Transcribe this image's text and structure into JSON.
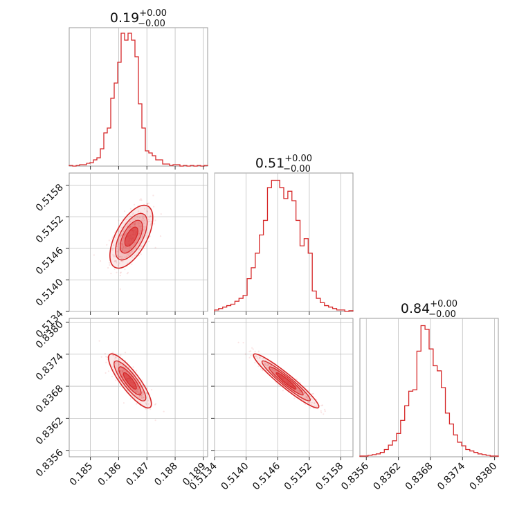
{
  "chart_data": {
    "type": "corner",
    "color": "#d62728",
    "grid": true,
    "parameters": [
      {
        "title": "0.19",
        "sup": "+0.00",
        "sub": "−0.00",
        "ticks": [
          0.185,
          0.186,
          0.187,
          0.188,
          0.189
        ],
        "tick_labels": [
          "0.185",
          "0.186",
          "0.187",
          "0.188",
          "0.189"
        ],
        "range": [
          0.18425,
          0.18915
        ],
        "hist": [
          1,
          0,
          1,
          2,
          2,
          4,
          5,
          9,
          12,
          25,
          48,
          55,
          98,
          120,
          150,
          192,
          182,
          192,
          182,
          158,
          90,
          55,
          22,
          19,
          15,
          9,
          9,
          3,
          3,
          1,
          2,
          2,
          0,
          1,
          0,
          1,
          0,
          1,
          0,
          1
        ],
        "hist_max": 200
      },
      {
        "title": "0.51",
        "sup": "+0.00",
        "sub": "−0.00",
        "ticks": [
          0.5134,
          0.514,
          0.5146,
          0.5152,
          0.5158
        ],
        "tick_labels": [
          "0.5134",
          "0.5140",
          "0.5146",
          "0.5152",
          "0.5158"
        ],
        "range": [
          0.5134,
          0.51603
        ],
        "hist": [
          2,
          4,
          6,
          8,
          10,
          14,
          18,
          22,
          45,
          60,
          80,
          105,
          125,
          170,
          180,
          180,
          170,
          155,
          165,
          152,
          125,
          90,
          100,
          80,
          28,
          18,
          12,
          8,
          6,
          4,
          2,
          2,
          0,
          1
        ],
        "hist_max": 190
      },
      {
        "title": "0.84",
        "sup": "+0.00",
        "sub": "−0.00",
        "ticks": [
          0.8356,
          0.8362,
          0.8368,
          0.8374,
          0.838
        ],
        "tick_labels": [
          "0.8356",
          "0.8362",
          "0.8368",
          "0.8374",
          "0.8380"
        ],
        "range": [
          0.83548,
          0.83807
        ],
        "hist": [
          1,
          1,
          2,
          3,
          4,
          6,
          10,
          16,
          22,
          32,
          50,
          70,
          90,
          92,
          145,
          180,
          175,
          148,
          125,
          118,
          95,
          60,
          45,
          30,
          20,
          15,
          10,
          8,
          6,
          4,
          3,
          2,
          1,
          1
        ],
        "hist_max": 190
      }
    ],
    "pairs": [
      {
        "x_param": 0,
        "y_param": 1,
        "mean": [
          0.18645,
          0.51482
        ],
        "sd": [
          0.00033,
          0.00026
        ],
        "rho": 0.6
      },
      {
        "x_param": 0,
        "y_param": 2,
        "mean": [
          0.1864,
          0.8369
        ],
        "sd": [
          0.00033,
          0.00022
        ],
        "rho": -0.85
      },
      {
        "x_param": 1,
        "y_param": 2,
        "mean": [
          0.51476,
          0.8369
        ],
        "sd": [
          0.00027,
          0.00022
        ],
        "rho": -0.95
      }
    ]
  }
}
